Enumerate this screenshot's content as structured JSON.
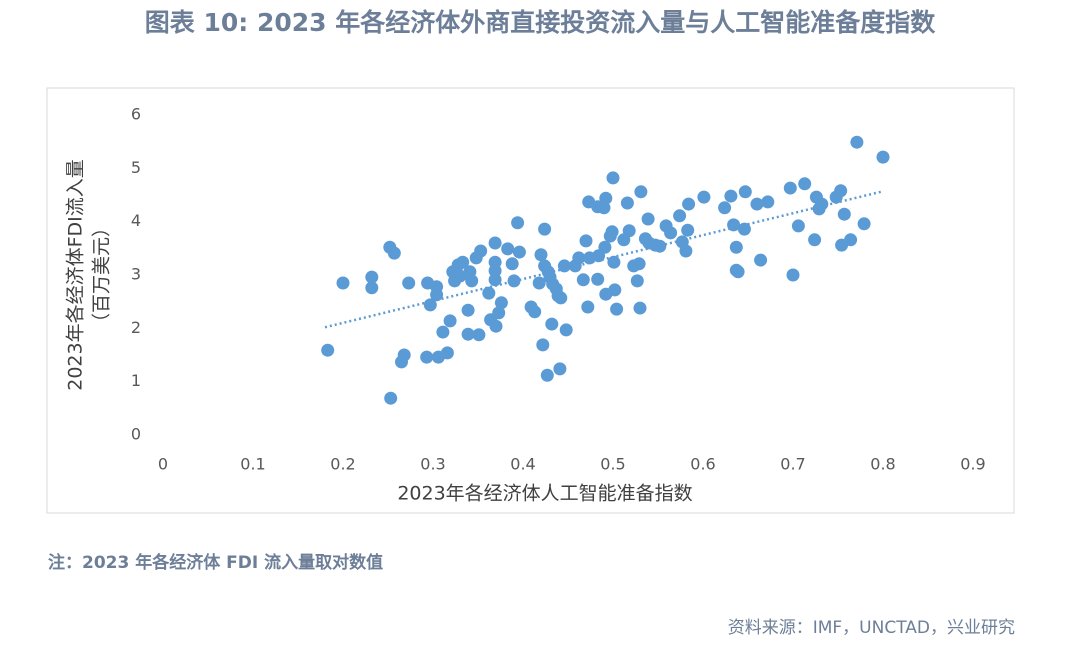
{
  "chart_data": {
    "type": "scatter",
    "title": "图表 10: 2023 年各经济体外商直接投资流入量与人工智能准备度指数",
    "x_label": "2023年各经济体人工智能准备指数",
    "y_label": [
      "2023年各经济体FDI流入量",
      "（百万美元）"
    ],
    "color": "#5b9bd5",
    "xlim": [
      0,
      0.9
    ],
    "xticks": [
      0,
      0.1,
      0.2,
      0.3,
      0.4,
      0.5,
      0.6,
      0.7,
      0.8,
      0.9
    ],
    "ylim": [
      0,
      6
    ],
    "yticks": [
      0,
      1,
      2,
      3,
      4,
      5,
      6
    ],
    "x": [
      0.183,
      0.2,
      0.232,
      0.232,
      0.252,
      0.257,
      0.253,
      0.265,
      0.268,
      0.273,
      0.294,
      0.297,
      0.293,
      0.304,
      0.304,
      0.306,
      0.311,
      0.316,
      0.319,
      0.322,
      0.324,
      0.328,
      0.33,
      0.333,
      0.339,
      0.339,
      0.341,
      0.343,
      0.348,
      0.351,
      0.353,
      0.362,
      0.364,
      0.369,
      0.369,
      0.369,
      0.369,
      0.37,
      0.376,
      0.373,
      0.383,
      0.388,
      0.39,
      0.394,
      0.396,
      0.409,
      0.413,
      0.418,
      0.42,
      0.424,
      0.422,
      0.424,
      0.427,
      0.428,
      0.43,
      0.432,
      0.433,
      0.437,
      0.439,
      0.441,
      0.442,
      0.448,
      0.446,
      0.458,
      0.462,
      0.467,
      0.47,
      0.472,
      0.473,
      0.474,
      0.483,
      0.484,
      0.483,
      0.49,
      0.491,
      0.492,
      0.492,
      0.497,
      0.499,
      0.5,
      0.501,
      0.502,
      0.504,
      0.512,
      0.516,
      0.518,
      0.523,
      0.527,
      0.529,
      0.53,
      0.531,
      0.536,
      0.539,
      0.54,
      0.547,
      0.552,
      0.559,
      0.564,
      0.574,
      0.577,
      0.581,
      0.583,
      0.584,
      0.601,
      0.624,
      0.631,
      0.634,
      0.637,
      0.637,
      0.639,
      0.646,
      0.647,
      0.66,
      0.664,
      0.672,
      0.697,
      0.7,
      0.706,
      0.713,
      0.724,
      0.726,
      0.729,
      0.732,
      0.748,
      0.753,
      0.754,
      0.757,
      0.764,
      0.771,
      0.779,
      0.8
    ],
    "y": [
      1.59,
      2.85,
      2.96,
      2.76,
      3.52,
      3.41,
      0.69,
      1.37,
      1.5,
      2.85,
      2.85,
      2.44,
      1.46,
      2.78,
      2.63,
      1.46,
      1.93,
      1.54,
      2.14,
      3.06,
      2.89,
      3.19,
      2.98,
      3.24,
      2.34,
      1.89,
      3.06,
      2.89,
      3.32,
      1.88,
      3.45,
      2.66,
      2.16,
      3.6,
      3.24,
      3.08,
      2.91,
      2.04,
      2.48,
      2.29,
      3.49,
      3.21,
      2.89,
      3.98,
      3.43,
      2.4,
      2.31,
      2.85,
      3.38,
      3.86,
      1.69,
      3.17,
      1.12,
      3.06,
      2.96,
      2.08,
      2.83,
      2.74,
      2.61,
      1.24,
      2.57,
      1.97,
      3.17,
      3.17,
      3.32,
      2.91,
      3.64,
      2.4,
      4.37,
      3.32,
      4.28,
      3.36,
      2.92,
      4.26,
      3.52,
      4.44,
      2.64,
      3.73,
      3.81,
      4.82,
      3.24,
      2.72,
      2.36,
      3.66,
      4.35,
      3.83,
      3.17,
      2.89,
      3.21,
      2.38,
      4.56,
      3.68,
      4.05,
      3.6,
      3.56,
      3.54,
      3.92,
      3.79,
      4.11,
      3.62,
      3.45,
      3.84,
      4.33,
      4.46,
      4.26,
      4.48,
      3.94,
      3.52,
      3.09,
      3.06,
      3.86,
      4.56,
      4.33,
      3.28,
      4.37,
      4.63,
      3.0,
      3.92,
      4.71,
      3.66,
      4.46,
      4.24,
      4.33,
      4.46,
      4.58,
      3.56,
      4.14,
      3.66,
      5.49,
      3.96,
      5.21
    ],
    "trendline": {
      "x": [
        0.18,
        0.8
      ],
      "y": [
        2.02,
        4.57
      ],
      "color": "#5b9bd5"
    }
  },
  "notes": {
    "note": "注：2023 年各经济体 FDI 流入量取对数值",
    "source": "资料来源：IMF，UNCTAD，兴业研究"
  }
}
